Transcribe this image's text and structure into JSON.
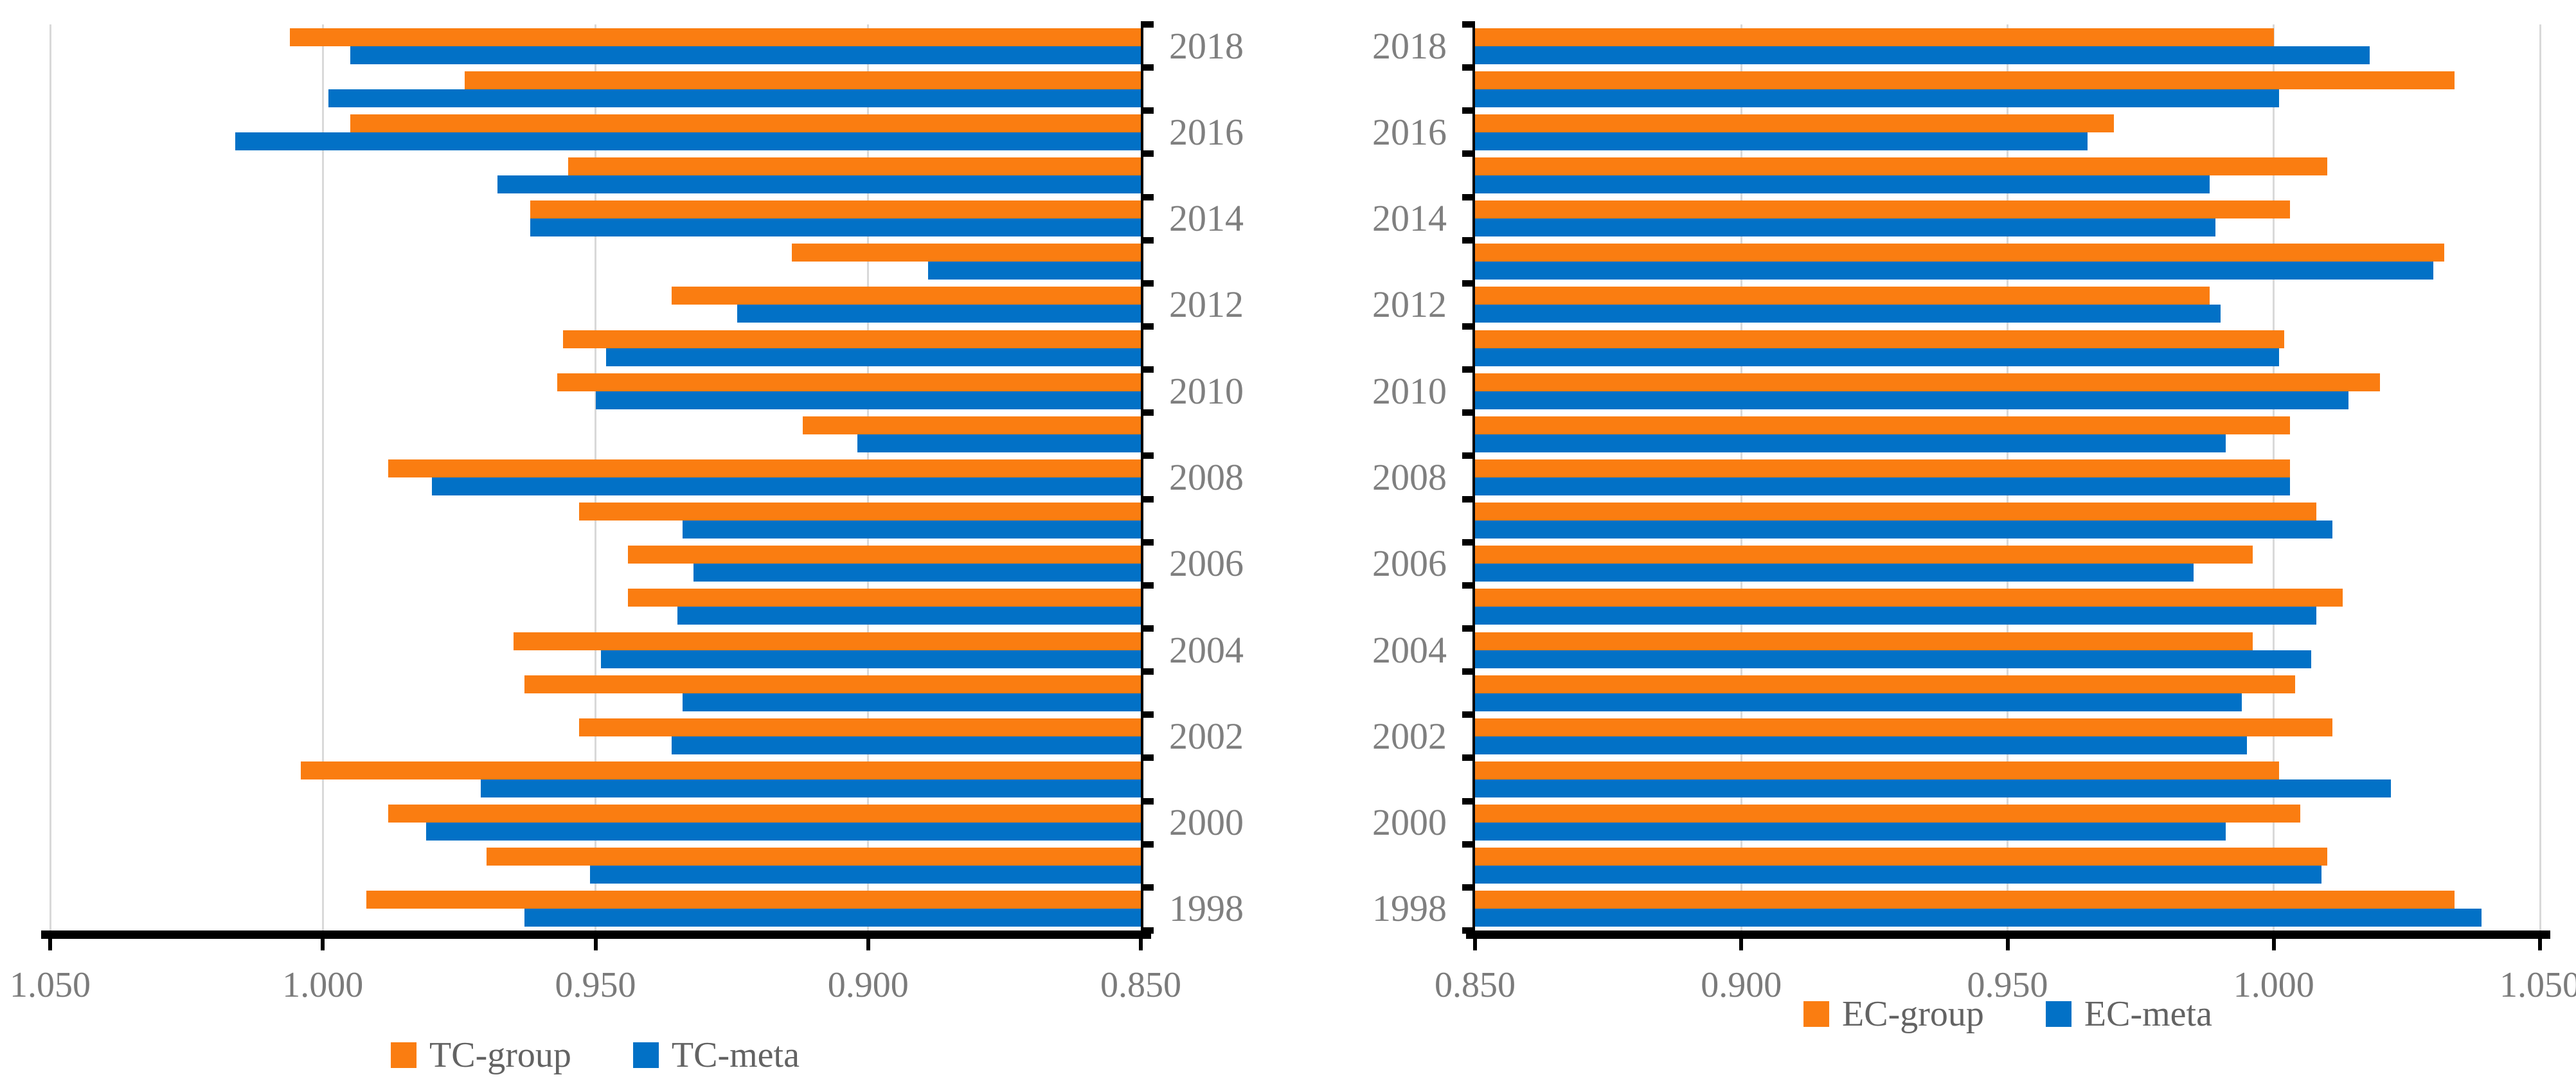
{
  "colors": {
    "group_orange": "#FA7D11",
    "meta_blue": "#0271C6",
    "gridline": "#D9D9D9",
    "axis": "#000000",
    "tick_label_gray": "#7B7B7B",
    "year_label_gray": "#7F7F7F",
    "legend_text_gray": "#636363"
  },
  "chart_data": [
    {
      "type": "bar",
      "orientation": "horizontal",
      "title": "",
      "x_axis": {
        "min": 0.85,
        "max": 1.05,
        "reversed": true,
        "tick_labels": [
          "1.050",
          "1.000",
          "0.950",
          "0.900",
          "0.850"
        ],
        "grid": true
      },
      "category_label_side": "right",
      "categories": [
        "2018",
        "2017",
        "2016",
        "2015",
        "2014",
        "2013",
        "2012",
        "2011",
        "2010",
        "2009",
        "2008",
        "2007",
        "2006",
        "2005",
        "2004",
        "2003",
        "2002",
        "2001",
        "2000",
        "1999",
        "1998"
      ],
      "shown_category_labels": [
        "2018",
        "2016",
        "2014",
        "2012",
        "2010",
        "2008",
        "2006",
        "2004",
        "2002",
        "2000",
        "1998"
      ],
      "series": [
        {
          "name": "TC-group",
          "color": "#FA7D11",
          "values": [
            1.006,
            0.974,
            0.995,
            0.955,
            0.962,
            0.914,
            0.936,
            0.956,
            0.957,
            0.912,
            0.988,
            0.953,
            0.944,
            0.944,
            0.965,
            0.963,
            0.953,
            1.004,
            0.988,
            0.97,
            0.992
          ]
        },
        {
          "name": "TC-meta",
          "color": "#0271C6",
          "values": [
            0.995,
            0.999,
            1.016,
            0.968,
            0.962,
            0.889,
            0.924,
            0.948,
            0.95,
            0.902,
            0.98,
            0.934,
            0.932,
            0.935,
            0.949,
            0.934,
            0.936,
            0.971,
            0.981,
            0.951,
            0.963
          ]
        }
      ],
      "legend": {
        "position": "bottom",
        "entries": [
          "TC-group",
          "TC-meta"
        ]
      }
    },
    {
      "type": "bar",
      "orientation": "horizontal",
      "title": "",
      "x_axis": {
        "min": 0.85,
        "max": 1.05,
        "reversed": false,
        "tick_labels": [
          "0.850",
          "0.900",
          "0.950",
          "1.000",
          "1.050"
        ],
        "grid": true
      },
      "category_label_side": "left",
      "categories": [
        "2018",
        "2017",
        "2016",
        "2015",
        "2014",
        "2013",
        "2012",
        "2011",
        "2010",
        "2009",
        "2008",
        "2007",
        "2006",
        "2005",
        "2004",
        "2003",
        "2002",
        "2001",
        "2000",
        "1999",
        "1998"
      ],
      "shown_category_labels": [
        "2018",
        "2016",
        "2014",
        "2012",
        "2010",
        "2008",
        "2006",
        "2004",
        "2002",
        "2000",
        "1998"
      ],
      "series": [
        {
          "name": "EC-group",
          "color": "#FA7D11",
          "values": [
            1.0,
            1.034,
            0.97,
            1.01,
            1.003,
            1.032,
            0.988,
            1.002,
            1.02,
            1.003,
            1.003,
            1.008,
            0.996,
            1.013,
            0.996,
            1.004,
            1.011,
            1.001,
            1.005,
            1.01,
            1.034
          ]
        },
        {
          "name": "EC-meta",
          "color": "#0271C6",
          "values": [
            1.018,
            1.001,
            0.965,
            0.988,
            0.989,
            1.03,
            0.99,
            1.001,
            1.014,
            0.991,
            1.003,
            1.011,
            0.985,
            1.008,
            1.007,
            0.994,
            0.995,
            1.022,
            0.991,
            1.009,
            1.039
          ]
        }
      ],
      "legend": {
        "position": "bottom",
        "entries": [
          "EC-group",
          "EC-meta"
        ]
      }
    }
  ]
}
